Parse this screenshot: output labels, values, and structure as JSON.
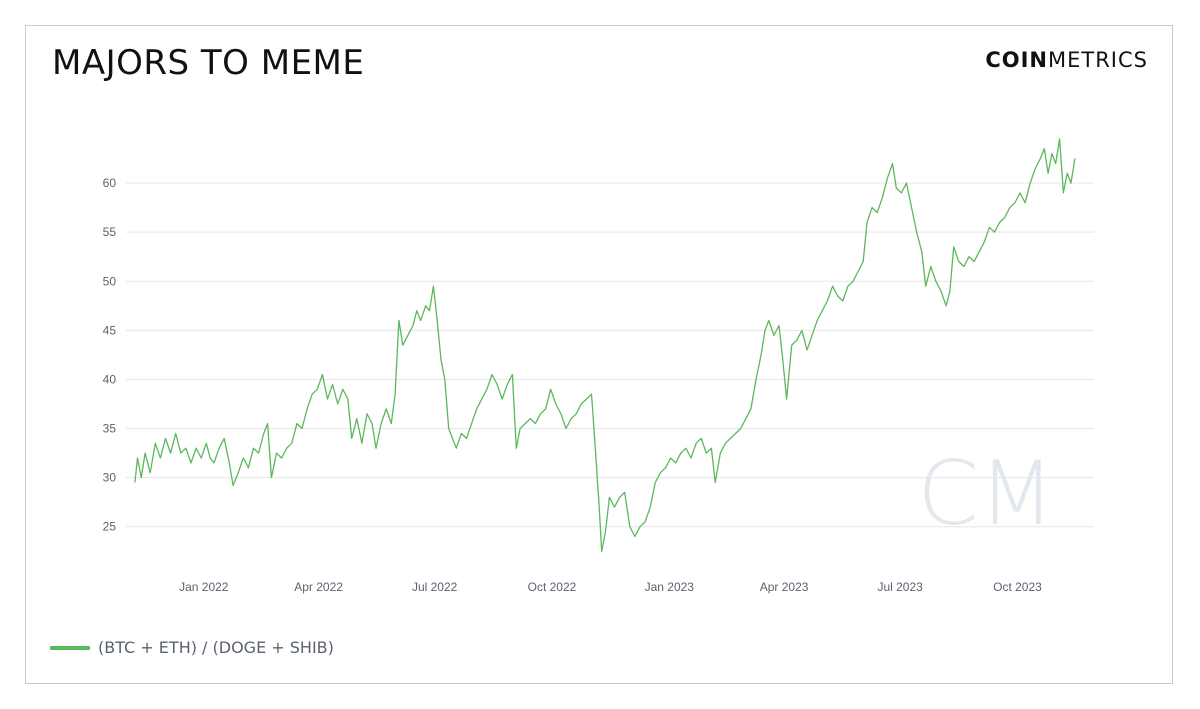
{
  "header": {
    "title": "MAJORS TO MEME",
    "brand_bold": "COIN",
    "brand_light": "METRICS"
  },
  "colors": {
    "series": "#5cb85c",
    "grid": "#e6e6e6",
    "tick": "#5a6270",
    "watermark": "#e3e7ee"
  },
  "watermark": {
    "text": "CM"
  },
  "chart_data": {
    "type": "line",
    "title": "MAJORS TO MEME",
    "xlabel": "",
    "ylabel": "",
    "grid": true,
    "legend_placement": "bottom-left",
    "xlim": [
      "2021-11-01",
      "2023-11-30"
    ],
    "ylim": [
      21,
      65
    ],
    "x_ticks": [
      {
        "date": "2022-01-01",
        "label": "Jan 2022"
      },
      {
        "date": "2022-04-01",
        "label": "Apr 2022"
      },
      {
        "date": "2022-07-01",
        "label": "Jul 2022"
      },
      {
        "date": "2022-10-01",
        "label": "Oct 2022"
      },
      {
        "date": "2023-01-01",
        "label": "Jan 2023"
      },
      {
        "date": "2023-04-01",
        "label": "Apr 2023"
      },
      {
        "date": "2023-07-01",
        "label": "Jul 2023"
      },
      {
        "date": "2023-10-01",
        "label": "Oct 2023"
      }
    ],
    "y_ticks": [
      25,
      30,
      35,
      40,
      45,
      50,
      55,
      60
    ],
    "series": [
      {
        "name": "(BTC + ETH) / (DOGE + SHIB)",
        "points": [
          [
            "2021-11-08",
            29.5
          ],
          [
            "2021-11-10",
            32.0
          ],
          [
            "2021-11-13",
            30.0
          ],
          [
            "2021-11-16",
            32.5
          ],
          [
            "2021-11-20",
            30.5
          ],
          [
            "2021-11-24",
            33.5
          ],
          [
            "2021-11-28",
            32.0
          ],
          [
            "2021-12-02",
            34.0
          ],
          [
            "2021-12-06",
            32.5
          ],
          [
            "2021-12-10",
            34.5
          ],
          [
            "2021-12-14",
            32.5
          ],
          [
            "2021-12-18",
            33.0
          ],
          [
            "2021-12-22",
            31.5
          ],
          [
            "2021-12-26",
            33.0
          ],
          [
            "2021-12-30",
            32.0
          ],
          [
            "2022-01-03",
            33.5
          ],
          [
            "2022-01-06",
            32.0
          ],
          [
            "2022-01-09",
            31.5
          ],
          [
            "2022-01-13",
            33.0
          ],
          [
            "2022-01-17",
            34.0
          ],
          [
            "2022-01-21",
            31.5
          ],
          [
            "2022-01-24",
            29.2
          ],
          [
            "2022-01-28",
            30.5
          ],
          [
            "2022-02-01",
            32.0
          ],
          [
            "2022-02-05",
            31.0
          ],
          [
            "2022-02-09",
            33.0
          ],
          [
            "2022-02-13",
            32.5
          ],
          [
            "2022-02-17",
            34.5
          ],
          [
            "2022-02-20",
            35.5
          ],
          [
            "2022-02-23",
            30.0
          ],
          [
            "2022-02-27",
            32.5
          ],
          [
            "2022-03-03",
            32.0
          ],
          [
            "2022-03-07",
            33.0
          ],
          [
            "2022-03-11",
            33.5
          ],
          [
            "2022-03-15",
            35.5
          ],
          [
            "2022-03-19",
            35.0
          ],
          [
            "2022-03-23",
            37.0
          ],
          [
            "2022-03-27",
            38.5
          ],
          [
            "2022-03-31",
            39.0
          ],
          [
            "2022-04-04",
            40.5
          ],
          [
            "2022-04-08",
            38.0
          ],
          [
            "2022-04-12",
            39.5
          ],
          [
            "2022-04-16",
            37.5
          ],
          [
            "2022-04-20",
            39.0
          ],
          [
            "2022-04-24",
            38.0
          ],
          [
            "2022-04-27",
            34.0
          ],
          [
            "2022-05-01",
            36.0
          ],
          [
            "2022-05-05",
            33.5
          ],
          [
            "2022-05-09",
            36.5
          ],
          [
            "2022-05-13",
            35.5
          ],
          [
            "2022-05-16",
            33.0
          ],
          [
            "2022-05-20",
            35.5
          ],
          [
            "2022-05-24",
            37.0
          ],
          [
            "2022-05-28",
            35.5
          ],
          [
            "2022-05-31",
            38.5
          ],
          [
            "2022-06-03",
            46.0
          ],
          [
            "2022-06-06",
            43.5
          ],
          [
            "2022-06-10",
            44.5
          ],
          [
            "2022-06-14",
            45.5
          ],
          [
            "2022-06-17",
            47.0
          ],
          [
            "2022-06-20",
            46.0
          ],
          [
            "2022-06-24",
            47.5
          ],
          [
            "2022-06-27",
            47.0
          ],
          [
            "2022-06-30",
            49.5
          ],
          [
            "2022-07-03",
            46.0
          ],
          [
            "2022-07-06",
            42.0
          ],
          [
            "2022-07-09",
            40.0
          ],
          [
            "2022-07-12",
            35.0
          ],
          [
            "2022-07-15",
            34.0
          ],
          [
            "2022-07-18",
            33.0
          ],
          [
            "2022-07-22",
            34.5
          ],
          [
            "2022-07-26",
            34.0
          ],
          [
            "2022-07-30",
            35.5
          ],
          [
            "2022-08-03",
            37.0
          ],
          [
            "2022-08-07",
            38.0
          ],
          [
            "2022-08-11",
            39.0
          ],
          [
            "2022-08-15",
            40.5
          ],
          [
            "2022-08-19",
            39.5
          ],
          [
            "2022-08-23",
            38.0
          ],
          [
            "2022-08-27",
            39.5
          ],
          [
            "2022-08-31",
            40.5
          ],
          [
            "2022-09-03",
            33.0
          ],
          [
            "2022-09-06",
            35.0
          ],
          [
            "2022-09-10",
            35.5
          ],
          [
            "2022-09-14",
            36.0
          ],
          [
            "2022-09-18",
            35.5
          ],
          [
            "2022-09-22",
            36.5
          ],
          [
            "2022-09-26",
            37.0
          ],
          [
            "2022-09-30",
            39.0
          ],
          [
            "2022-10-04",
            37.5
          ],
          [
            "2022-10-08",
            36.5
          ],
          [
            "2022-10-12",
            35.0
          ],
          [
            "2022-10-16",
            36.0
          ],
          [
            "2022-10-20",
            36.5
          ],
          [
            "2022-10-24",
            37.5
          ],
          [
            "2022-10-28",
            38.0
          ],
          [
            "2022-11-01",
            38.5
          ],
          [
            "2022-11-04",
            33.0
          ],
          [
            "2022-11-07",
            27.0
          ],
          [
            "2022-11-09",
            22.5
          ],
          [
            "2022-11-12",
            24.5
          ],
          [
            "2022-11-15",
            28.0
          ],
          [
            "2022-11-19",
            27.0
          ],
          [
            "2022-11-23",
            28.0
          ],
          [
            "2022-11-27",
            28.5
          ],
          [
            "2022-12-01",
            25.0
          ],
          [
            "2022-12-05",
            24.0
          ],
          [
            "2022-12-09",
            25.0
          ],
          [
            "2022-12-13",
            25.5
          ],
          [
            "2022-12-17",
            27.0
          ],
          [
            "2022-12-21",
            29.5
          ],
          [
            "2022-12-25",
            30.5
          ],
          [
            "2022-12-29",
            31.0
          ],
          [
            "2023-01-02",
            32.0
          ],
          [
            "2023-01-06",
            31.5
          ],
          [
            "2023-01-10",
            32.5
          ],
          [
            "2023-01-14",
            33.0
          ],
          [
            "2023-01-18",
            32.0
          ],
          [
            "2023-01-22",
            33.5
          ],
          [
            "2023-01-26",
            34.0
          ],
          [
            "2023-01-30",
            32.5
          ],
          [
            "2023-02-03",
            33.0
          ],
          [
            "2023-02-06",
            29.5
          ],
          [
            "2023-02-10",
            32.5
          ],
          [
            "2023-02-14",
            33.5
          ],
          [
            "2023-02-18",
            34.0
          ],
          [
            "2023-02-22",
            34.5
          ],
          [
            "2023-02-26",
            35.0
          ],
          [
            "2023-03-02",
            36.0
          ],
          [
            "2023-03-06",
            37.0
          ],
          [
            "2023-03-10",
            40.0
          ],
          [
            "2023-03-14",
            42.5
          ],
          [
            "2023-03-17",
            45.0
          ],
          [
            "2023-03-20",
            46.0
          ],
          [
            "2023-03-24",
            44.5
          ],
          [
            "2023-03-28",
            45.5
          ],
          [
            "2023-03-31",
            42.0
          ],
          [
            "2023-04-03",
            38.0
          ],
          [
            "2023-04-07",
            43.5
          ],
          [
            "2023-04-11",
            44.0
          ],
          [
            "2023-04-15",
            45.0
          ],
          [
            "2023-04-19",
            43.0
          ],
          [
            "2023-04-23",
            44.5
          ],
          [
            "2023-04-27",
            46.0
          ],
          [
            "2023-05-01",
            47.0
          ],
          [
            "2023-05-05",
            48.0
          ],
          [
            "2023-05-09",
            49.5
          ],
          [
            "2023-05-13",
            48.5
          ],
          [
            "2023-05-17",
            48.0
          ],
          [
            "2023-05-21",
            49.5
          ],
          [
            "2023-05-25",
            50.0
          ],
          [
            "2023-05-29",
            51.0
          ],
          [
            "2023-06-02",
            52.0
          ],
          [
            "2023-06-05",
            56.0
          ],
          [
            "2023-06-09",
            57.5
          ],
          [
            "2023-06-13",
            57.0
          ],
          [
            "2023-06-17",
            58.5
          ],
          [
            "2023-06-21",
            60.5
          ],
          [
            "2023-06-25",
            62.0
          ],
          [
            "2023-06-28",
            59.5
          ],
          [
            "2023-07-02",
            59.0
          ],
          [
            "2023-07-06",
            60.0
          ],
          [
            "2023-07-10",
            57.5
          ],
          [
            "2023-07-14",
            55.0
          ],
          [
            "2023-07-18",
            53.0
          ],
          [
            "2023-07-21",
            49.5
          ],
          [
            "2023-07-25",
            51.5
          ],
          [
            "2023-07-29",
            50.0
          ],
          [
            "2023-08-02",
            49.0
          ],
          [
            "2023-08-06",
            47.5
          ],
          [
            "2023-08-09",
            49.0
          ],
          [
            "2023-08-12",
            53.5
          ],
          [
            "2023-08-16",
            52.0
          ],
          [
            "2023-08-20",
            51.5
          ],
          [
            "2023-08-24",
            52.5
          ],
          [
            "2023-08-28",
            52.0
          ],
          [
            "2023-09-01",
            53.0
          ],
          [
            "2023-09-05",
            54.0
          ],
          [
            "2023-09-09",
            55.5
          ],
          [
            "2023-09-13",
            55.0
          ],
          [
            "2023-09-17",
            56.0
          ],
          [
            "2023-09-21",
            56.5
          ],
          [
            "2023-09-25",
            57.5
          ],
          [
            "2023-09-29",
            58.0
          ],
          [
            "2023-10-03",
            59.0
          ],
          [
            "2023-10-07",
            58.0
          ],
          [
            "2023-10-11",
            60.0
          ],
          [
            "2023-10-15",
            61.5
          ],
          [
            "2023-10-19",
            62.5
          ],
          [
            "2023-10-22",
            63.5
          ],
          [
            "2023-10-25",
            61.0
          ],
          [
            "2023-10-28",
            63.0
          ],
          [
            "2023-10-31",
            62.0
          ],
          [
            "2023-11-03",
            64.5
          ],
          [
            "2023-11-06",
            59.0
          ],
          [
            "2023-11-09",
            61.0
          ],
          [
            "2023-11-12",
            60.0
          ],
          [
            "2023-11-15",
            62.5
          ]
        ]
      }
    ]
  }
}
